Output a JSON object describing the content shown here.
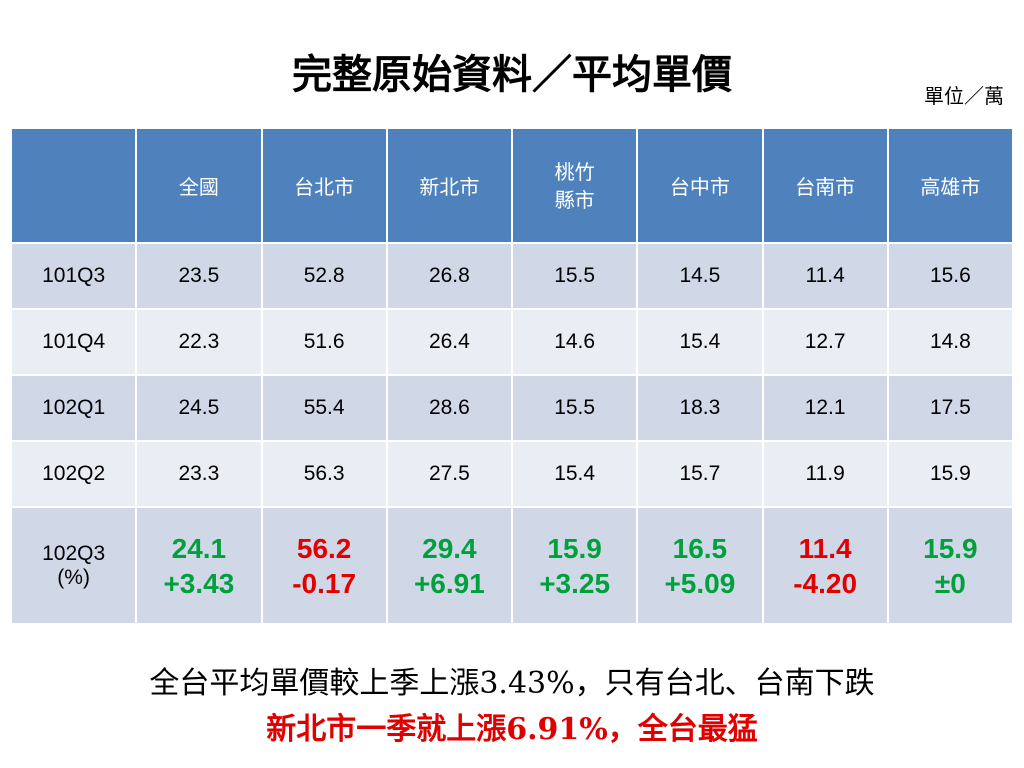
{
  "title": "完整原始資料／平均單價",
  "unit": "單位／萬",
  "table": {
    "header": [
      "",
      "全國",
      "台北市",
      "新北市",
      "桃竹縣市",
      "台中市",
      "台南市",
      "高雄市"
    ],
    "rows": [
      [
        "101Q3",
        "23.5",
        "52.8",
        "26.8",
        "15.5",
        "14.5",
        "11.4",
        "15.6"
      ],
      [
        "101Q4",
        "22.3",
        "51.6",
        "26.4",
        "14.6",
        "15.4",
        "12.7",
        "14.8"
      ],
      [
        "102Q1",
        "24.5",
        "55.4",
        "28.6",
        "15.5",
        "18.3",
        "12.1",
        "17.5"
      ],
      [
        "102Q2",
        "23.3",
        "56.3",
        "27.5",
        "15.4",
        "15.7",
        "11.9",
        "15.9"
      ]
    ],
    "last_row": {
      "label": "102Q3",
      "unit": "(%)",
      "cells": [
        {
          "value": "24.1",
          "change": "+3.43",
          "color": "#00a03c"
        },
        {
          "value": "56.2",
          "change": "-0.17",
          "color": "#e00000"
        },
        {
          "value": "29.4",
          "change": "+6.91",
          "color": "#00a03c"
        },
        {
          "value": "15.9",
          "change": "+3.25",
          "color": "#00a03c"
        },
        {
          "value": "16.5",
          "change": "+5.09",
          "color": "#00a03c"
        },
        {
          "value": "11.4",
          "change": "-4.20",
          "color": "#e00000"
        },
        {
          "value": "15.9",
          "change": "±0",
          "color": "#00a03c"
        }
      ]
    }
  },
  "notes": [
    "全台平均單價較上季上漲3.43%，只有台北、台南下跌",
    "新北市一季就上漲6.91%，全台最猛"
  ]
}
